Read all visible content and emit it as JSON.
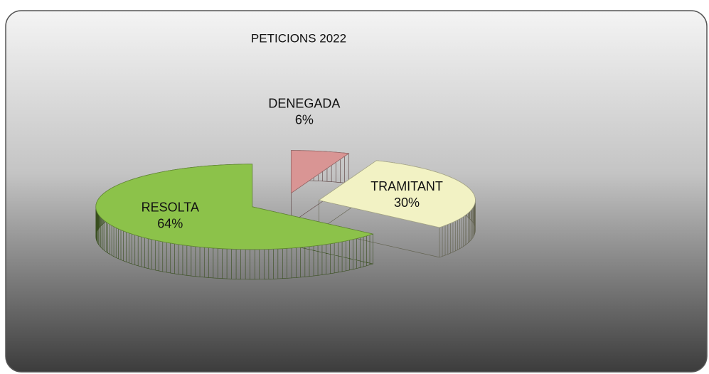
{
  "chart_data": {
    "type": "pie",
    "title": "PETICIONS 2022",
    "categories": [
      "DENEGADA",
      "TRAMITANT",
      "RESOLTA"
    ],
    "values": [
      6,
      30,
      64
    ],
    "value_labels": [
      "6%",
      "30%",
      "64%"
    ],
    "colors": [
      "#d99594",
      "#f2f2c4",
      "#8cc24a"
    ]
  }
}
